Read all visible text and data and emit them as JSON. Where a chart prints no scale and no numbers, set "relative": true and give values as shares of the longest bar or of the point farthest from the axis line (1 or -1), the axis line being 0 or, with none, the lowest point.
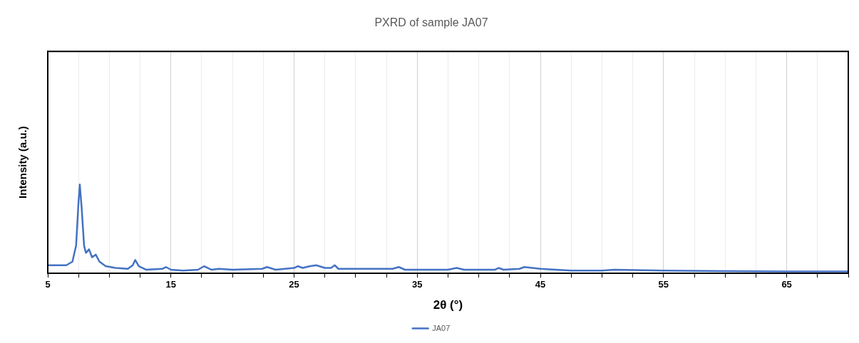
{
  "chart_data": {
    "type": "line",
    "title": "PXRD of sample JA07",
    "xlabel": "2θ (°)",
    "ylabel": "Intensity (a.u.)",
    "relative": true,
    "xlim": [
      5,
      70
    ],
    "xticks": [
      5,
      {
        "value": 7.5,
        "label": null
      },
      {
        "value": 10,
        "label": null
      },
      {
        "value": 12.5,
        "label": null
      },
      15,
      {
        "value": 17.5,
        "label": null
      },
      {
        "value": 20,
        "label": null
      },
      {
        "value": 22.5,
        "label": null
      },
      25,
      {
        "value": 27.5,
        "label": null
      },
      {
        "value": 30,
        "label": null
      },
      {
        "value": 32.5,
        "label": null
      },
      35,
      {
        "value": 37.5,
        "label": null
      },
      {
        "value": 40,
        "label": null
      },
      {
        "value": 42.5,
        "label": null
      },
      45,
      {
        "value": 47.5,
        "label": null
      },
      {
        "value": 50,
        "label": null
      },
      {
        "value": 52.5,
        "label": null
      },
      55,
      {
        "value": 57.5,
        "label": null
      },
      {
        "value": 60,
        "label": null
      },
      {
        "value": 62.5,
        "label": null
      },
      65,
      {
        "value": 67.5,
        "label": null
      },
      {
        "value": 70,
        "label": null
      }
    ],
    "grid": "x",
    "legend": "bottom",
    "marker": "none",
    "line_style": "solid",
    "series": [
      {
        "name": "JA07",
        "color": "#4472c4",
        "x": [
          5,
          6.5,
          7,
          7.3,
          7.5,
          7.6,
          7.75,
          7.95,
          8.1,
          8.35,
          8.6,
          8.9,
          9.2,
          9.7,
          10.5,
          11.5,
          11.9,
          12.1,
          12.4,
          13,
          14.3,
          14.6,
          15,
          16,
          17.2,
          17.7,
          18.3,
          18.9,
          20,
          22.4,
          22.8,
          23.5,
          25,
          25.3,
          25.7,
          26.3,
          26.8,
          27.5,
          28,
          28.3,
          28.6,
          30,
          33,
          33.5,
          34,
          37.5,
          38.2,
          38.8,
          41.3,
          41.6,
          42,
          43.3,
          43.7,
          45,
          47.5,
          50,
          51,
          55,
          60,
          65,
          70
        ],
        "values": [
          0.09,
          0.09,
          0.13,
          0.31,
          0.81,
          1.0,
          0.74,
          0.31,
          0.23,
          0.27,
          0.18,
          0.21,
          0.13,
          0.08,
          0.06,
          0.05,
          0.09,
          0.15,
          0.08,
          0.04,
          0.05,
          0.07,
          0.04,
          0.03,
          0.04,
          0.08,
          0.04,
          0.05,
          0.04,
          0.05,
          0.07,
          0.04,
          0.06,
          0.08,
          0.06,
          0.08,
          0.09,
          0.06,
          0.06,
          0.09,
          0.05,
          0.05,
          0.05,
          0.07,
          0.04,
          0.04,
          0.06,
          0.04,
          0.04,
          0.06,
          0.04,
          0.05,
          0.07,
          0.05,
          0.03,
          0.03,
          0.04,
          0.03,
          0.025,
          0.02,
          0.02
        ]
      }
    ]
  }
}
